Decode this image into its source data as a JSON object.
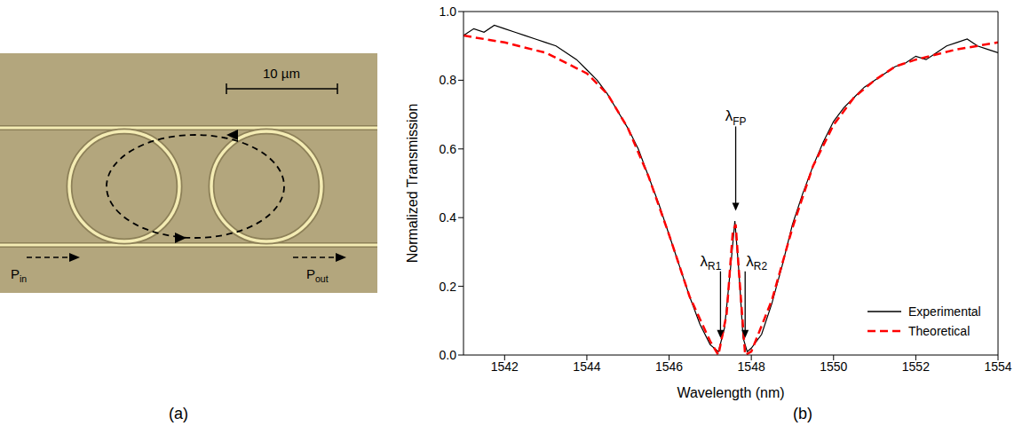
{
  "micrograph": {
    "scale_bar": "10 µm",
    "input": "Pin",
    "output": "Pout",
    "panel_label": "(a)"
  },
  "chart_data": {
    "type": "line",
    "panel_label": "(b)",
    "xlabel": "Wavelength (nm)",
    "ylabel": "Normalized Transmission",
    "xlim": [
      1541,
      1554
    ],
    "xticks": [
      1542,
      1544,
      1546,
      1548,
      1550,
      1552,
      1554
    ],
    "ylim": [
      0,
      1
    ],
    "yticks": [
      {
        "value": 0,
        "label": "0.0"
      },
      0.2,
      0.4,
      0.6,
      0.8,
      {
        "value": 1,
        "label": "1.0"
      }
    ],
    "legend": "lower right",
    "series": [
      {
        "name": "Experimental",
        "color": "#000000",
        "line_style": "solid",
        "x": [
          1541.0,
          1541.25,
          1541.5,
          1541.75,
          1542.0,
          1542.25,
          1542.5,
          1542.75,
          1543.0,
          1543.25,
          1543.5,
          1543.75,
          1544.0,
          1544.25,
          1544.5,
          1544.75,
          1545.0,
          1545.25,
          1545.5,
          1545.75,
          1546.0,
          1546.25,
          1546.5,
          1546.75,
          1547.0,
          1547.2,
          1547.35,
          1547.5,
          1547.6,
          1547.7,
          1547.8,
          1547.9,
          1548.0,
          1548.25,
          1548.5,
          1548.75,
          1549.0,
          1549.25,
          1549.5,
          1549.75,
          1550.0,
          1550.25,
          1550.5,
          1550.75,
          1551.0,
          1551.25,
          1551.5,
          1551.75,
          1552.0,
          1552.25,
          1552.5,
          1552.75,
          1553.0,
          1553.25,
          1553.5,
          1553.75,
          1554.0
        ],
        "values": [
          0.93,
          0.95,
          0.94,
          0.96,
          0.95,
          0.94,
          0.93,
          0.92,
          0.91,
          0.9,
          0.88,
          0.86,
          0.83,
          0.8,
          0.76,
          0.71,
          0.66,
          0.6,
          0.52,
          0.44,
          0.35,
          0.26,
          0.17,
          0.09,
          0.03,
          0.01,
          0.08,
          0.26,
          0.39,
          0.24,
          0.05,
          0.01,
          0.02,
          0.06,
          0.15,
          0.26,
          0.38,
          0.47,
          0.55,
          0.62,
          0.68,
          0.72,
          0.75,
          0.78,
          0.8,
          0.82,
          0.84,
          0.85,
          0.87,
          0.86,
          0.88,
          0.9,
          0.91,
          0.92,
          0.9,
          0.89,
          0.88
        ]
      },
      {
        "name": "Theoretical",
        "color": "#ff0000",
        "line_style": "dashed",
        "x": [
          1541,
          1542,
          1543,
          1544,
          1544.5,
          1545,
          1545.5,
          1546,
          1546.5,
          1547,
          1547.2,
          1547.4,
          1547.55,
          1547.62,
          1547.7,
          1547.85,
          1548,
          1548.5,
          1549,
          1549.5,
          1550,
          1550.5,
          1551,
          1551.5,
          1552,
          1553,
          1554
        ],
        "values": [
          0.93,
          0.91,
          0.88,
          0.82,
          0.76,
          0.66,
          0.52,
          0.35,
          0.17,
          0.04,
          0,
          0.12,
          0.36,
          0.38,
          0.24,
          0,
          0.01,
          0.16,
          0.37,
          0.55,
          0.67,
          0.75,
          0.8,
          0.84,
          0.86,
          0.89,
          0.91
        ]
      }
    ],
    "annotations": [
      {
        "text": "λR1",
        "x": 1547.25,
        "y": 0.05
      },
      {
        "text": "λFP",
        "x": 1547.62,
        "y": 0.42
      },
      {
        "text": "λR2",
        "x": 1547.85,
        "y": 0.05
      }
    ]
  }
}
